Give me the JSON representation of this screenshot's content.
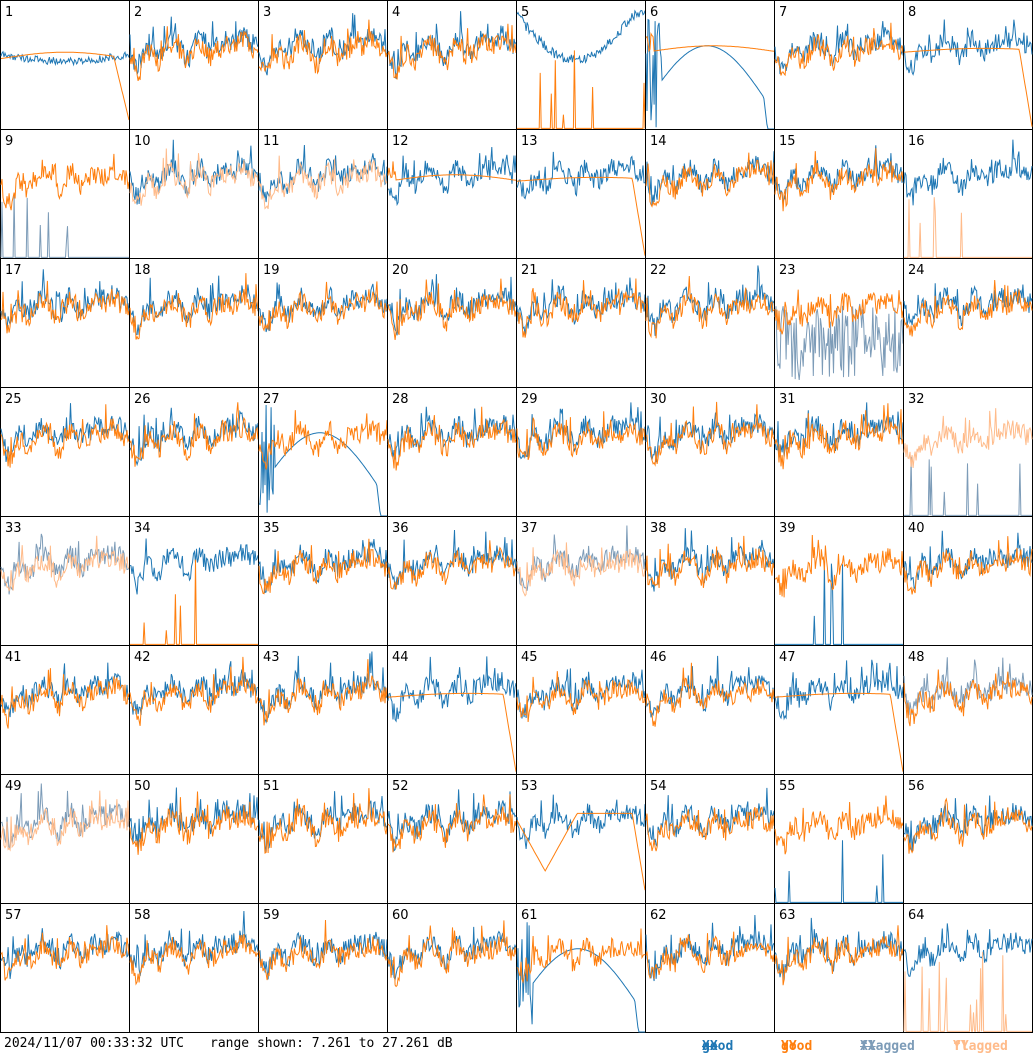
{
  "footer": {
    "timestamp": "2024/11/07 00:33:32 UTC",
    "range_text": "range shown: 7.261 to 27.261 dB"
  },
  "legend": [
    {
      "id": "good_xx",
      "prefix": "good ",
      "pol": "XX",
      "color": "#1f77b4"
    },
    {
      "id": "good_yy",
      "prefix": "good ",
      "pol": "YY",
      "color": "#ff7f0e"
    },
    {
      "id": "flagged_xx",
      "prefix": "flagged ",
      "pol": "XX",
      "color": "#7d9cb8"
    },
    {
      "id": "flagged_yy",
      "prefix": "flagged ",
      "pol": "YY",
      "color": "#ffbb8a"
    }
  ],
  "chart_data": {
    "type": "line",
    "description_units": "dB",
    "y_range": [
      7.261,
      27.261
    ],
    "grid_rows": 8,
    "grid_cols": 8,
    "colors": {
      "good_xx": "#1f77b4",
      "good_yy": "#ff7f0e",
      "flagged_xx": "#7d9cb8",
      "flagged_yy": "#ffbb8a"
    },
    "panels": [
      {
        "label": "1",
        "xx": "good",
        "yy": "good",
        "xx_shape": "bowl",
        "yy_shape": "bowl_drop"
      },
      {
        "label": "2",
        "xx": "good",
        "yy": "good"
      },
      {
        "label": "3",
        "xx": "good",
        "yy": "good"
      },
      {
        "label": "4",
        "xx": "good",
        "yy": "good"
      },
      {
        "label": "5",
        "xx": "good",
        "yy": "good",
        "xx_shape": "bowl_high",
        "yy_shape": "spikes"
      },
      {
        "label": "6",
        "xx": "good",
        "yy": "good",
        "xx_shape": "dip_dropoff",
        "yy_shape": "smooth"
      },
      {
        "label": "7",
        "xx": "good",
        "yy": "good"
      },
      {
        "label": "8",
        "xx": "good",
        "yy": "good",
        "yy_shape": "smooth_drop"
      },
      {
        "label": "9",
        "xx": "flagged",
        "yy": "good",
        "xx_shape": "spikes"
      },
      {
        "label": "10",
        "xx": "good",
        "yy": "flagged"
      },
      {
        "label": "11",
        "xx": "good",
        "yy": "flagged"
      },
      {
        "label": "12",
        "xx": "good",
        "yy": "good",
        "yy_shape": "smooth"
      },
      {
        "label": "13",
        "xx": "good",
        "yy": "good",
        "yy_shape": "smooth_drop"
      },
      {
        "label": "14",
        "xx": "good",
        "yy": "good"
      },
      {
        "label": "15",
        "xx": "good",
        "yy": "good"
      },
      {
        "label": "16",
        "xx": "good",
        "yy": "flagged",
        "yy_shape": "spikes"
      },
      {
        "label": "17",
        "xx": "good",
        "yy": "good"
      },
      {
        "label": "18",
        "xx": "good",
        "yy": "good"
      },
      {
        "label": "19",
        "xx": "good",
        "yy": "good"
      },
      {
        "label": "20",
        "xx": "good",
        "yy": "good"
      },
      {
        "label": "21",
        "xx": "good",
        "yy": "good"
      },
      {
        "label": "22",
        "xx": "good",
        "yy": "good"
      },
      {
        "label": "23",
        "xx": "flagged",
        "yy": "good",
        "xx_shape": "noise_low"
      },
      {
        "label": "24",
        "xx": "good",
        "yy": "good"
      },
      {
        "label": "25",
        "xx": "good",
        "yy": "good"
      },
      {
        "label": "26",
        "xx": "good",
        "yy": "good"
      },
      {
        "label": "27",
        "xx": "good",
        "yy": "good",
        "xx_shape": "dip_dropoff"
      },
      {
        "label": "28",
        "xx": "good",
        "yy": "good"
      },
      {
        "label": "29",
        "xx": "good",
        "yy": "good"
      },
      {
        "label": "30",
        "xx": "good",
        "yy": "good"
      },
      {
        "label": "31",
        "xx": "good",
        "yy": "good"
      },
      {
        "label": "32",
        "xx": "flagged",
        "yy": "flagged",
        "xx_shape": "spikes"
      },
      {
        "label": "33",
        "xx": "flagged",
        "yy": "flagged"
      },
      {
        "label": "34",
        "xx": "good",
        "yy": "good",
        "yy_shape": "spikes"
      },
      {
        "label": "35",
        "xx": "good",
        "yy": "good"
      },
      {
        "label": "36",
        "xx": "good",
        "yy": "good"
      },
      {
        "label": "37",
        "xx": "flagged",
        "yy": "flagged"
      },
      {
        "label": "38",
        "xx": "good",
        "yy": "good"
      },
      {
        "label": "39",
        "xx": "good",
        "yy": "good",
        "xx_shape": "spikes"
      },
      {
        "label": "40",
        "xx": "good",
        "yy": "good"
      },
      {
        "label": "41",
        "xx": "good",
        "yy": "good"
      },
      {
        "label": "42",
        "xx": "good",
        "yy": "good"
      },
      {
        "label": "43",
        "xx": "good",
        "yy": "good"
      },
      {
        "label": "44",
        "xx": "good",
        "yy": "good",
        "yy_shape": "smooth_drop"
      },
      {
        "label": "45",
        "xx": "good",
        "yy": "good"
      },
      {
        "label": "46",
        "xx": "good",
        "yy": "good"
      },
      {
        "label": "47",
        "xx": "good",
        "yy": "good",
        "yy_shape": "smooth_drop"
      },
      {
        "label": "48",
        "xx": "flagged",
        "yy": "good"
      },
      {
        "label": "49",
        "xx": "flagged",
        "yy": "flagged"
      },
      {
        "label": "50",
        "xx": "good",
        "yy": "good"
      },
      {
        "label": "51",
        "xx": "good",
        "yy": "good"
      },
      {
        "label": "52",
        "xx": "good",
        "yy": "good"
      },
      {
        "label": "53",
        "xx": "good",
        "yy": "good",
        "yy_shape": "dip_drop"
      },
      {
        "label": "54",
        "xx": "good",
        "yy": "good"
      },
      {
        "label": "55",
        "xx": "good",
        "yy": "good",
        "xx_shape": "spikes"
      },
      {
        "label": "56",
        "xx": "good",
        "yy": "good"
      },
      {
        "label": "57",
        "xx": "good",
        "yy": "good"
      },
      {
        "label": "58",
        "xx": "good",
        "yy": "good"
      },
      {
        "label": "59",
        "xx": "good",
        "yy": "good"
      },
      {
        "label": "60",
        "xx": "good",
        "yy": "good"
      },
      {
        "label": "61",
        "xx": "good",
        "yy": "good",
        "xx_shape": "dip_dropoff"
      },
      {
        "label": "62",
        "xx": "good",
        "yy": "good"
      },
      {
        "label": "63",
        "xx": "good",
        "yy": "good"
      },
      {
        "label": "64",
        "xx": "good",
        "yy": "flagged",
        "yy_shape": "spikes"
      }
    ]
  }
}
